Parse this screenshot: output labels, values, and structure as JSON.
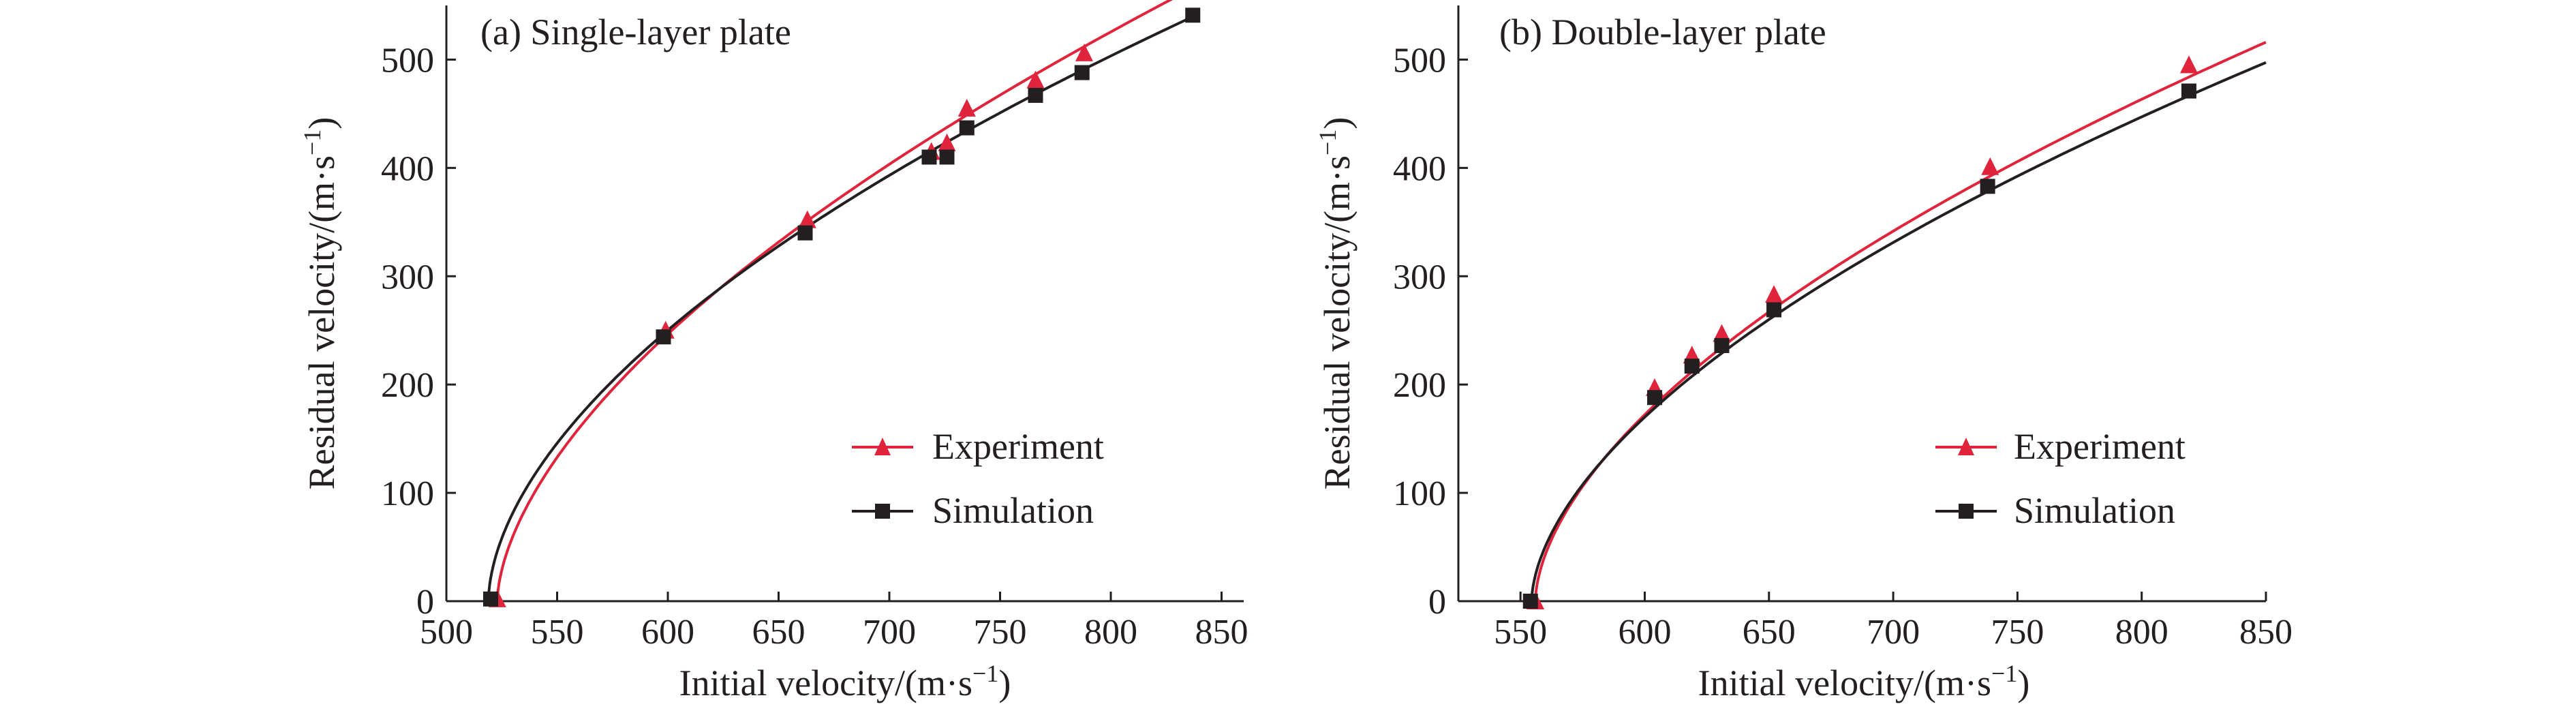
{
  "colors": {
    "experiment": "#e0243c",
    "simulation": "#231f20",
    "axis": "#231f20"
  },
  "chart_data": [
    {
      "type": "line",
      "title": "(a) Single-layer plate",
      "xlabel": "Initial velocity/(m·s",
      "ylabel": "Residual velocity/(m·s",
      "unit_exponent": "−1",
      "xlim": [
        500,
        860
      ],
      "ylim": [
        0,
        550
      ],
      "xticks": [
        500,
        550,
        600,
        650,
        700,
        750,
        800,
        850
      ],
      "yticks": [
        0,
        100,
        200,
        300,
        400,
        500
      ],
      "legend": {
        "position": "lower-right",
        "entries": [
          "Experiment",
          "Simulation"
        ]
      },
      "series": [
        {
          "name": "Experiment",
          "marker": "triangle",
          "color": "#e0243c",
          "x": [
            523,
            599,
            663,
            719,
            726,
            735,
            766,
            788
          ],
          "y": [
            2,
            250,
            352,
            415,
            423,
            455,
            481,
            506
          ],
          "fit": {
            "x0": 523,
            "a": 18.93,
            "p": 0.591,
            "xmax": 830
          }
        },
        {
          "name": "Simulation",
          "marker": "square",
          "color": "#231f20",
          "x": [
            520,
            598,
            662,
            718,
            726,
            735,
            766,
            787,
            837
          ],
          "y": [
            2,
            244,
            340,
            410,
            410,
            437,
            467,
            488,
            541
          ],
          "fit": {
            "x0": 519,
            "a": 21.17,
            "p": 0.562,
            "xmax": 837
          }
        }
      ]
    },
    {
      "type": "line",
      "title": "(b) Double-layer plate",
      "xlabel": "Initial velocity/(m·s",
      "ylabel": "Residual velocity/(m·s",
      "unit_exponent": "−1",
      "xlim": [
        525,
        850
      ],
      "ylim": [
        0,
        550
      ],
      "xticks": [
        550,
        600,
        650,
        700,
        750,
        800,
        850
      ],
      "yticks": [
        0,
        100,
        200,
        300,
        400,
        500
      ],
      "legend": {
        "position": "lower-right",
        "entries": [
          "Experiment",
          "Simulation"
        ]
      },
      "series": [
        {
          "name": "Experiment",
          "marker": "triangle",
          "color": "#e0243c",
          "x": [
            556,
            604,
            619,
            631,
            652,
            739,
            819
          ],
          "y": [
            0,
            197,
            227,
            247,
            283,
            401,
            495
          ],
          "fit": {
            "x0": 556,
            "a": 19.32,
            "p": 0.578,
            "xmax": 850
          }
        },
        {
          "name": "Simulation",
          "marker": "square",
          "color": "#231f20",
          "x": [
            554,
            604,
            619,
            631,
            652,
            738,
            819
          ],
          "y": [
            0,
            188,
            217,
            236,
            269,
            383,
            471
          ],
          "fit": {
            "x0": 554.5,
            "a": 18.99,
            "p": 0.574,
            "xmax": 850
          }
        }
      ]
    }
  ]
}
